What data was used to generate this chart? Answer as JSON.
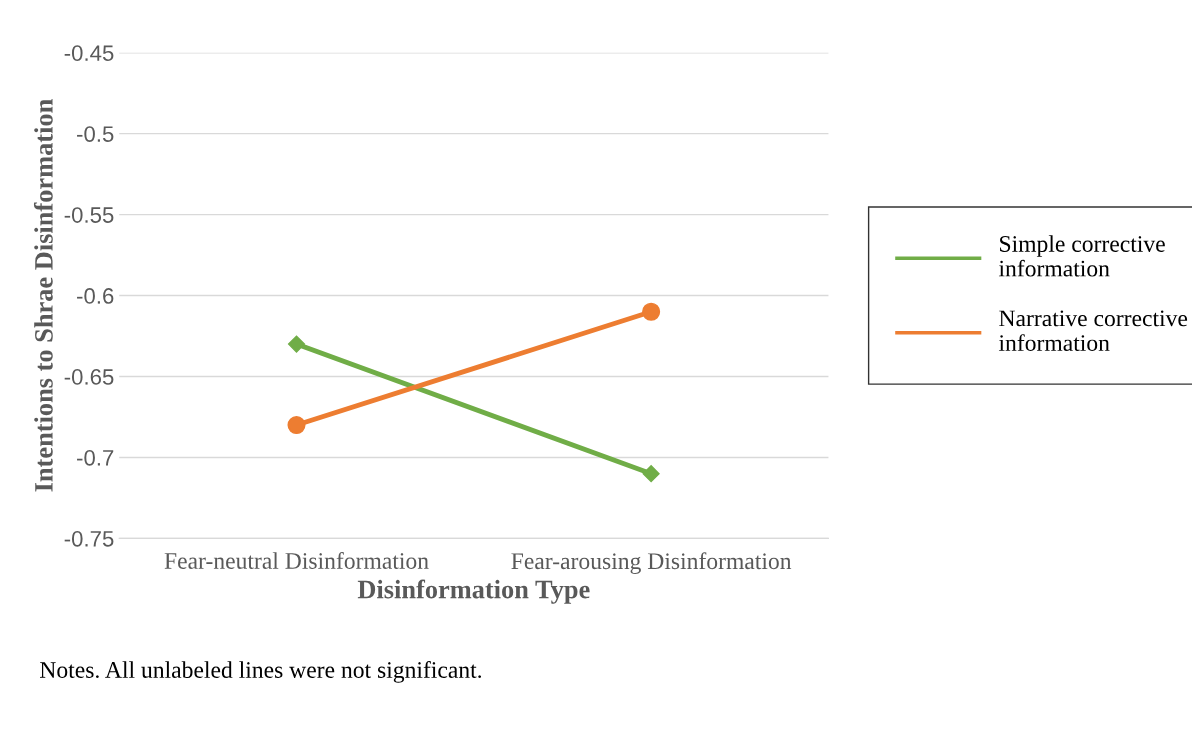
{
  "chart_data": {
    "type": "line",
    "xlabel": "Disinformation Type",
    "ylabel": "Intentions to Shrae Disinformation",
    "categories": [
      "Fear-neutral Disinformation",
      "Fear-arousing Disinformation"
    ],
    "series": [
      {
        "name": "Simple corrective information",
        "color": "#70ad47",
        "values": [
          -0.63,
          -0.71
        ],
        "marker": "diamond"
      },
      {
        "name": "Narrative corrective information",
        "color": "#ed7d31",
        "values": [
          -0.68,
          -0.61
        ],
        "marker": "circle"
      }
    ],
    "ylim": [
      -0.75,
      -0.45
    ],
    "yticks": [
      -0.75,
      -0.7,
      -0.65,
      -0.6,
      -0.55,
      -0.5,
      -0.45
    ],
    "grid": "y",
    "legend": "right",
    "line_style": "solid",
    "annotations": [
      "Notes. All unlabeled lines were not significant."
    ]
  }
}
